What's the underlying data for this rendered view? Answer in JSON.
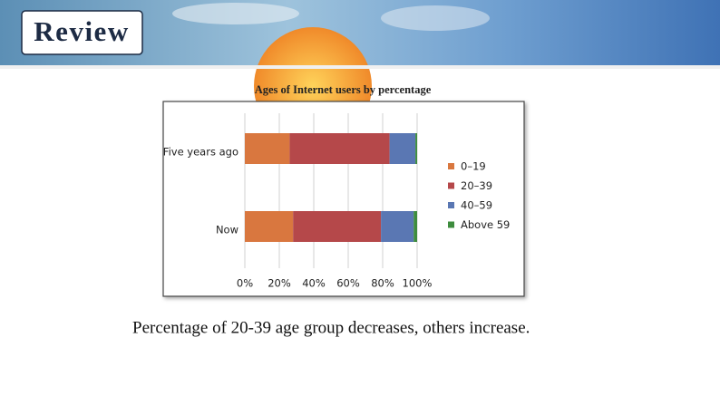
{
  "header": {
    "title": "Review"
  },
  "caption": "Percentage of 20-39 age group decreases, others increase.",
  "chart_data": {
    "type": "stacked-bar-horizontal",
    "title": "Ages of Internet users by percentage",
    "categories": [
      "Five years ago",
      "Now"
    ],
    "series": [
      {
        "name": "0–19",
        "color": "#d9773f",
        "values": [
          26,
          28
        ]
      },
      {
        "name": "20–39",
        "color": "#b5484a",
        "values": [
          58,
          51
        ]
      },
      {
        "name": "40–59",
        "color": "#5a77b3",
        "values": [
          15,
          19
        ]
      },
      {
        "name": "Above 59",
        "color": "#3e8c3e",
        "values": [
          1,
          2
        ]
      }
    ],
    "xlim": [
      0,
      100
    ],
    "xticks": [
      {
        "value": 0,
        "label": "0%"
      },
      {
        "value": 20,
        "label": "20%"
      },
      {
        "value": 40,
        "label": "40%"
      },
      {
        "value": 60,
        "label": "60%"
      },
      {
        "value": 80,
        "label": "80%"
      },
      {
        "value": 100,
        "label": "100%"
      }
    ],
    "grid": true
  }
}
